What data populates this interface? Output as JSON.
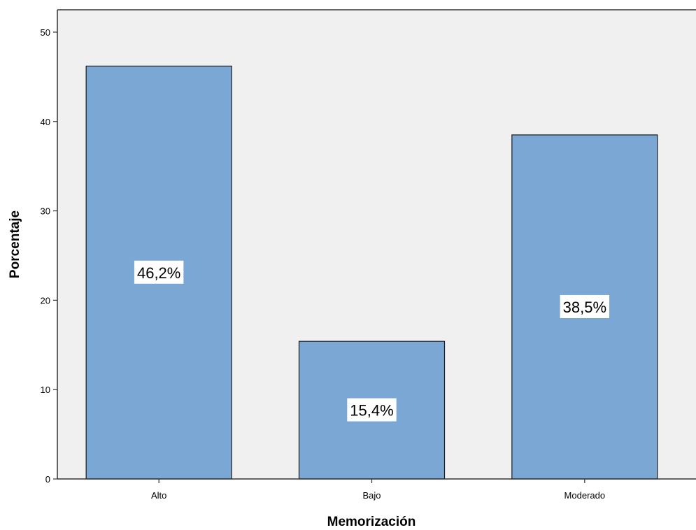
{
  "chart_data": {
    "type": "bar",
    "title": "",
    "xlabel": "Memorización",
    "ylabel": "Porcentaje",
    "categories": [
      "Alto",
      "Bajo",
      "Moderado"
    ],
    "values": [
      46.2,
      15.4,
      38.5
    ],
    "data_labels": [
      "46,2%",
      "15,4%",
      "38,5%"
    ],
    "yticks": [
      0,
      10,
      20,
      30,
      40,
      50
    ],
    "ylim": [
      0,
      52.5
    ],
    "grid": false,
    "legend": "none",
    "colors": {
      "bar_fill": "#7ba7d4",
      "bar_stroke": "#1a1a1a",
      "plot_background": "#f0f0f0",
      "axis": "#333333",
      "label_box": "#ffffff"
    }
  }
}
